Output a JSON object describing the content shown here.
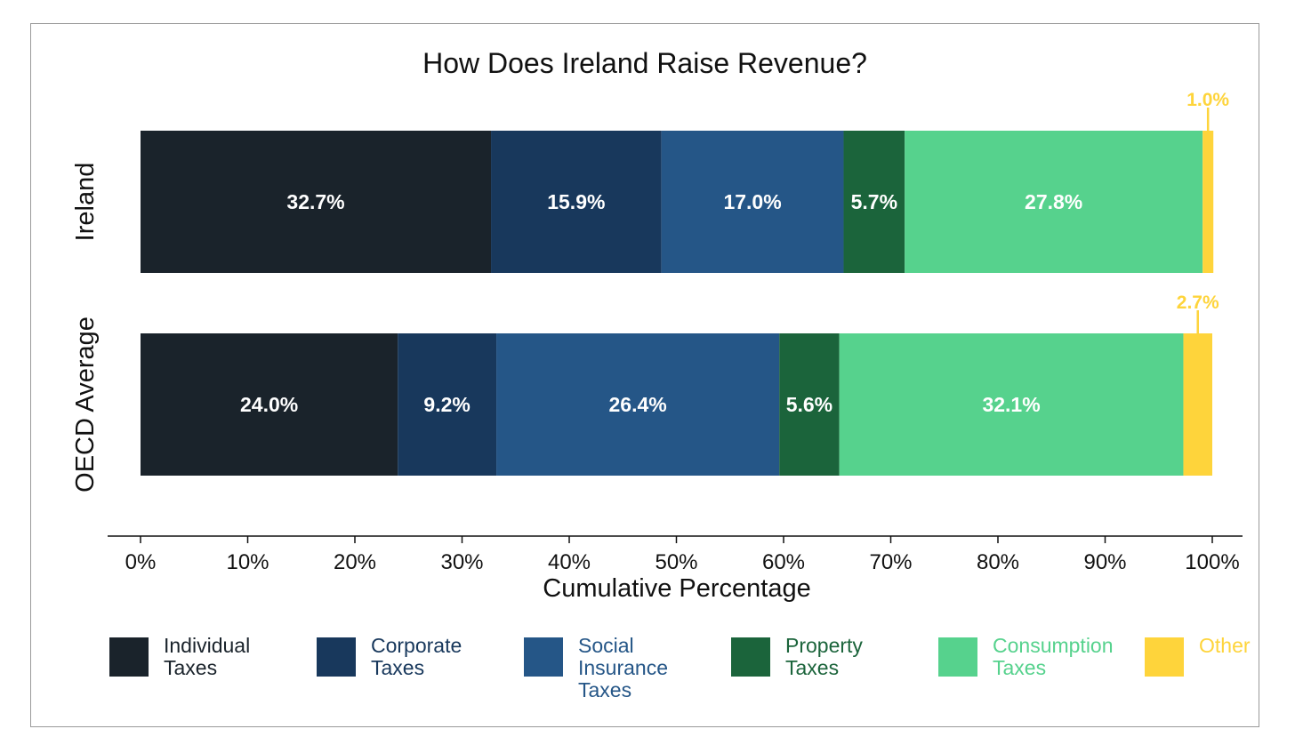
{
  "chart_data": {
    "type": "bar",
    "orientation": "horizontal",
    "stacked": true,
    "title": "How Does Ireland Raise Revenue?",
    "xlabel": "Cumulative Percentage",
    "xlim": [
      0,
      100
    ],
    "x_ticks": [
      "0%",
      "10%",
      "20%",
      "30%",
      "40%",
      "50%",
      "60%",
      "70%",
      "80%",
      "90%",
      "100%"
    ],
    "categories": [
      "Ireland",
      "OECD Average"
    ],
    "series": [
      {
        "name": "Individual Taxes",
        "legend_lines": [
          "Individual",
          "Taxes"
        ],
        "color": "#1a232b",
        "legend_text_color": "#1a232b",
        "values": [
          32.7,
          24.0
        ],
        "labels": [
          "32.7%",
          "24.0%"
        ]
      },
      {
        "name": "Corporate Taxes",
        "legend_lines": [
          "Corporate",
          "Taxes"
        ],
        "color": "#18385c",
        "legend_text_color": "#18385c",
        "values": [
          15.9,
          9.2
        ],
        "labels": [
          "15.9%",
          "9.2%"
        ]
      },
      {
        "name": "Social Insurance Taxes",
        "legend_lines": [
          "Social",
          "Insurance",
          "Taxes"
        ],
        "color": "#255687",
        "legend_text_color": "#255687",
        "values": [
          17.0,
          26.4
        ],
        "labels": [
          "17.0%",
          "26.4%"
        ]
      },
      {
        "name": "Property Taxes",
        "legend_lines": [
          "Property",
          "Taxes"
        ],
        "color": "#1b643b",
        "legend_text_color": "#1b643b",
        "values": [
          5.7,
          5.6
        ],
        "labels": [
          "5.7%",
          "5.6%"
        ]
      },
      {
        "name": "Consumption Taxes",
        "legend_lines": [
          "Consumption",
          "Taxes"
        ],
        "color": "#56d28d",
        "legend_text_color": "#56d28d",
        "values": [
          27.8,
          32.1
        ],
        "labels": [
          "27.8%",
          "32.1%"
        ]
      },
      {
        "name": "Other",
        "legend_lines": [
          "Other"
        ],
        "color": "#fed43b",
        "legend_text_color": "#fed43b",
        "values": [
          1.0,
          2.7
        ],
        "labels": [
          "1.0%",
          "2.7%"
        ],
        "callout": true
      }
    ],
    "legend_position": "bottom",
    "grid": false
  }
}
